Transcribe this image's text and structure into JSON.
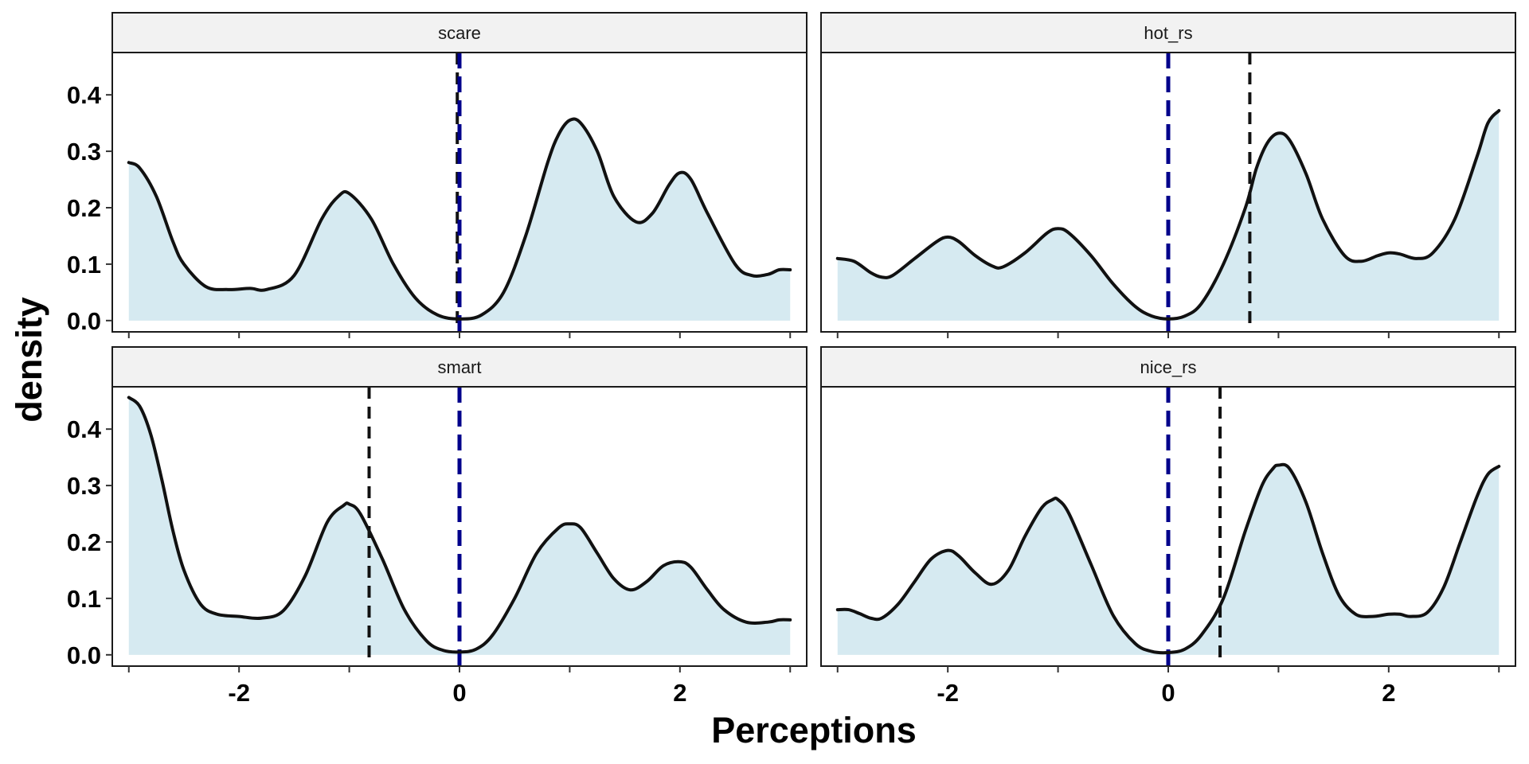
{
  "chart_data": {
    "type": "area",
    "chart_kind": "faceted density plot",
    "xlabel": "Perceptions",
    "ylabel": "density",
    "xlim": [
      -3.15,
      3.15
    ],
    "ylim": [
      -0.02,
      0.475
    ],
    "x_ticks": [
      -2,
      0,
      2
    ],
    "x_tick_labels": [
      "-2",
      "0",
      "2"
    ],
    "y_ticks": [
      0.0,
      0.1,
      0.2,
      0.3,
      0.4
    ],
    "y_tick_labels": [
      "0.0",
      "0.1",
      "0.2",
      "0.3",
      "0.4"
    ],
    "grid": false,
    "layout": "2x2 facet grid, shared axes",
    "colors": {
      "fill": "#d6eaf1",
      "curve": "#111111",
      "reference_line": "#00008b",
      "mean_line": "#111111",
      "strip_bg": "#f2f2f2"
    },
    "reference_line_x": 0,
    "panels": [
      {
        "label": "scare",
        "mean": -0.02,
        "curve": {
          "x": [
            -3.0,
            -2.9,
            -2.75,
            -2.6,
            -2.5,
            -2.3,
            -2.1,
            -1.9,
            -1.75,
            -1.5,
            -1.25,
            -1.1,
            -1.0,
            -0.8,
            -0.6,
            -0.4,
            -0.2,
            0.0,
            0.2,
            0.4,
            0.6,
            0.8,
            0.9,
            1.0,
            1.1,
            1.25,
            1.4,
            1.6,
            1.75,
            1.9,
            2.0,
            2.1,
            2.25,
            2.5,
            2.65,
            2.8,
            2.9,
            3.0
          ],
          "y": [
            0.28,
            0.27,
            0.22,
            0.14,
            0.1,
            0.06,
            0.055,
            0.057,
            0.055,
            0.08,
            0.18,
            0.22,
            0.225,
            0.18,
            0.1,
            0.04,
            0.01,
            0.003,
            0.01,
            0.05,
            0.15,
            0.28,
            0.33,
            0.355,
            0.35,
            0.3,
            0.22,
            0.175,
            0.19,
            0.24,
            0.262,
            0.25,
            0.19,
            0.1,
            0.08,
            0.082,
            0.09,
            0.09
          ]
        }
      },
      {
        "label": "hot_rs",
        "mean": 0.74,
        "curve": {
          "x": [
            -3.0,
            -2.85,
            -2.7,
            -2.6,
            -2.5,
            -2.3,
            -2.1,
            -2.0,
            -1.9,
            -1.75,
            -1.6,
            -1.5,
            -1.3,
            -1.1,
            -1.0,
            -0.9,
            -0.7,
            -0.5,
            -0.3,
            -0.15,
            0.0,
            0.15,
            0.3,
            0.5,
            0.7,
            0.8,
            0.9,
            1.0,
            1.1,
            1.25,
            1.4,
            1.6,
            1.75,
            1.9,
            2.0,
            2.1,
            2.25,
            2.4,
            2.6,
            2.8,
            2.9,
            3.0
          ],
          "y": [
            0.11,
            0.105,
            0.085,
            0.077,
            0.08,
            0.11,
            0.14,
            0.148,
            0.14,
            0.115,
            0.097,
            0.095,
            0.12,
            0.155,
            0.163,
            0.155,
            0.115,
            0.065,
            0.025,
            0.008,
            0.003,
            0.008,
            0.03,
            0.1,
            0.2,
            0.27,
            0.315,
            0.332,
            0.32,
            0.26,
            0.18,
            0.115,
            0.105,
            0.115,
            0.12,
            0.118,
            0.11,
            0.12,
            0.18,
            0.29,
            0.35,
            0.372
          ]
        }
      },
      {
        "label": "smart",
        "mean": -0.82,
        "curve": {
          "x": [
            -3.0,
            -2.9,
            -2.8,
            -2.7,
            -2.6,
            -2.5,
            -2.35,
            -2.2,
            -2.0,
            -1.8,
            -1.6,
            -1.4,
            -1.2,
            -1.05,
            -1.0,
            -0.9,
            -0.7,
            -0.5,
            -0.3,
            -0.15,
            0.0,
            0.15,
            0.3,
            0.5,
            0.7,
            0.9,
            1.0,
            1.1,
            1.25,
            1.4,
            1.55,
            1.7,
            1.85,
            2.0,
            2.1,
            2.25,
            2.4,
            2.6,
            2.8,
            2.9,
            3.0
          ],
          "y": [
            0.456,
            0.44,
            0.39,
            0.31,
            0.22,
            0.15,
            0.09,
            0.072,
            0.068,
            0.065,
            0.078,
            0.14,
            0.235,
            0.265,
            0.267,
            0.25,
            0.17,
            0.08,
            0.025,
            0.008,
            0.005,
            0.01,
            0.035,
            0.1,
            0.18,
            0.225,
            0.232,
            0.225,
            0.18,
            0.135,
            0.115,
            0.13,
            0.158,
            0.165,
            0.155,
            0.115,
            0.08,
            0.058,
            0.058,
            0.062,
            0.062
          ]
        }
      },
      {
        "label": "nice_rs",
        "mean": 0.47,
        "curve": {
          "x": [
            -3.0,
            -2.9,
            -2.8,
            -2.7,
            -2.6,
            -2.45,
            -2.3,
            -2.15,
            -2.0,
            -1.9,
            -1.75,
            -1.6,
            -1.45,
            -1.3,
            -1.15,
            -1.05,
            -1.0,
            -0.9,
            -0.7,
            -0.5,
            -0.3,
            -0.15,
            0.0,
            0.15,
            0.3,
            0.5,
            0.7,
            0.85,
            0.95,
            1.0,
            1.1,
            1.25,
            1.4,
            1.55,
            1.7,
            1.85,
            2.0,
            2.1,
            2.2,
            2.35,
            2.5,
            2.65,
            2.8,
            2.9,
            3.0
          ],
          "y": [
            0.08,
            0.08,
            0.073,
            0.065,
            0.065,
            0.09,
            0.13,
            0.17,
            0.185,
            0.175,
            0.145,
            0.125,
            0.15,
            0.21,
            0.26,
            0.275,
            0.275,
            0.25,
            0.16,
            0.07,
            0.02,
            0.006,
            0.004,
            0.01,
            0.035,
            0.1,
            0.22,
            0.3,
            0.33,
            0.336,
            0.33,
            0.27,
            0.18,
            0.105,
            0.072,
            0.068,
            0.072,
            0.072,
            0.068,
            0.075,
            0.12,
            0.2,
            0.28,
            0.32,
            0.334
          ]
        }
      }
    ]
  }
}
